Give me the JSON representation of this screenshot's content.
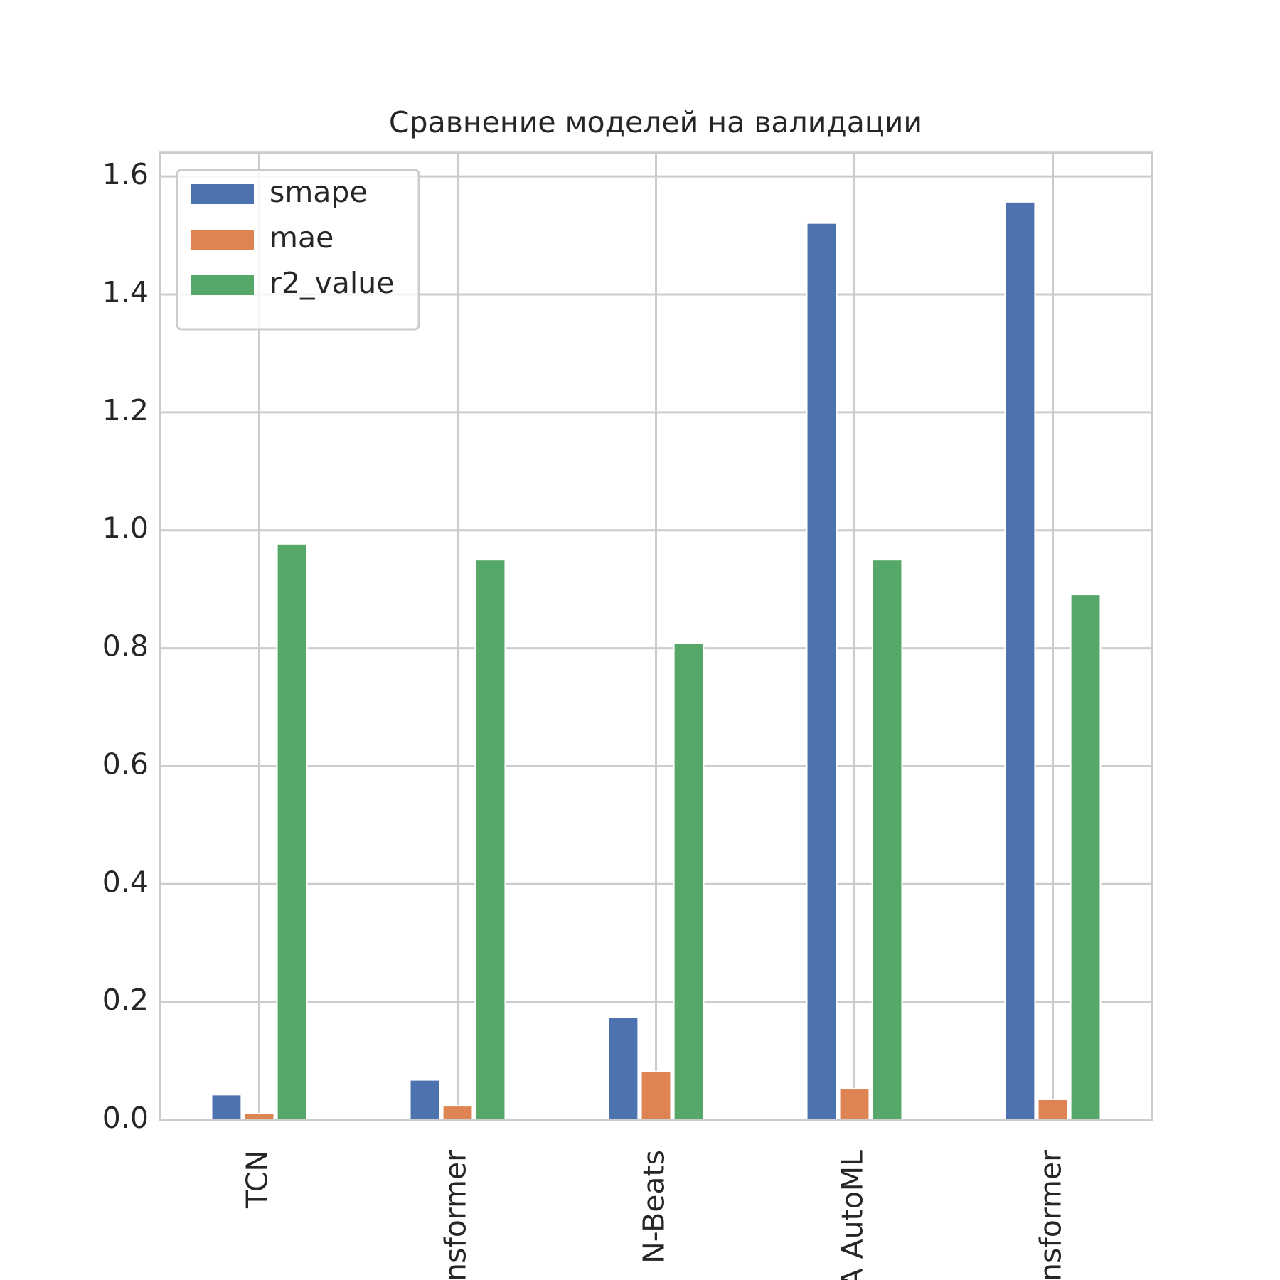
{
  "chart_data": {
    "type": "bar",
    "title": "Сравнение моделей на валидации",
    "categories": [
      "TCN",
      "nsformer",
      "N-Beats",
      "A AutoML",
      "nsformer"
    ],
    "series": [
      {
        "name": "smape",
        "color": "#4c72b0",
        "values": [
          0.043,
          0.068,
          0.174,
          1.521,
          1.557
        ]
      },
      {
        "name": "mae",
        "color": "#dd8452",
        "values": [
          0.011,
          0.024,
          0.082,
          0.053,
          0.035
        ]
      },
      {
        "name": "r2_value",
        "color": "#55a868",
        "values": [
          0.977,
          0.95,
          0.809,
          0.95,
          0.891
        ]
      }
    ],
    "ylim": [
      0,
      1.64
    ],
    "yticks": [
      {
        "value": 0,
        "label": "0.0"
      },
      0.2,
      0.4,
      0.6,
      0.8,
      {
        "value": 1,
        "label": "1.0"
      },
      1.2,
      1.4,
      1.6
    ],
    "grid": true,
    "legend": "upper-left"
  }
}
